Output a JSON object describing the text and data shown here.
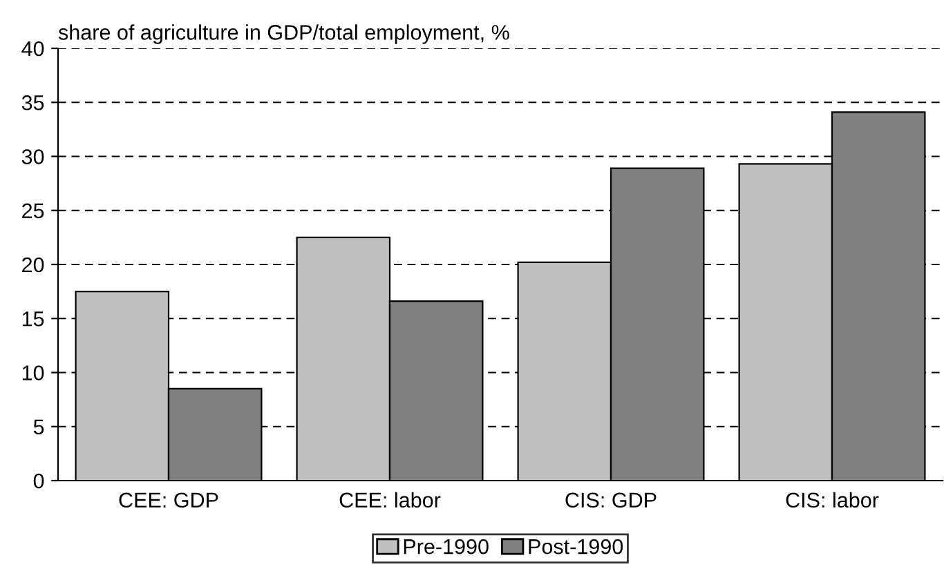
{
  "chart_data": {
    "type": "bar",
    "title": "share of agriculture in GDP/total employment, %",
    "categories": [
      "CEE: GDP",
      "CEE: labor",
      "CIS: GDP",
      "CIS: labor"
    ],
    "series": [
      {
        "name": "Pre-1990",
        "color": "#c0c0c0",
        "values": [
          17.5,
          22.5,
          20.2,
          29.3
        ]
      },
      {
        "name": "Post-1990",
        "color": "#808080",
        "values": [
          8.5,
          16.6,
          28.9,
          34.1
        ]
      }
    ],
    "ylim": [
      0,
      40
    ],
    "yticks": [
      0,
      5,
      10,
      15,
      20,
      25,
      30,
      35,
      40
    ],
    "grid": "y",
    "legend": "bottom"
  }
}
